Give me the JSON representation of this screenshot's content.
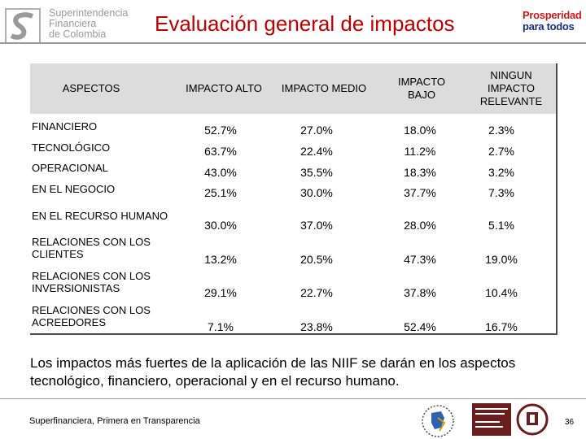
{
  "header": {
    "org_lines": [
      "Superintendencia",
      "Financiera",
      "de Colombia"
    ],
    "title": "Evaluación general de impactos",
    "prosperidad_lines": [
      "Prosperidad",
      "para todos"
    ]
  },
  "table": {
    "headers": [
      "ASPECTOS",
      "IMPACTO ALTO",
      "IMPACTO MEDIO",
      "IMPACTO BAJO",
      "NINGUN IMPACTO RELEVANTE"
    ],
    "rows": [
      {
        "aspect": "FINANCIERO",
        "values": [
          "52.7%",
          "27.0%",
          "18.0%",
          "2.3%"
        ]
      },
      {
        "aspect": "TECNOLÓGICO",
        "values": [
          "63.7%",
          "22.4%",
          "11.2%",
          "2.7%"
        ]
      },
      {
        "aspect": "OPERACIONAL",
        "values": [
          "43.0%",
          "35.5%",
          "18.3%",
          "3.2%"
        ]
      },
      {
        "aspect": "EN EL NEGOCIO",
        "values": [
          "25.1%",
          "30.0%",
          "37.7%",
          "7.3%"
        ]
      },
      {
        "aspect": "EN EL RECURSO HUMANO",
        "values": [
          "30.0%",
          "37.0%",
          "28.0%",
          "5.1%"
        ]
      },
      {
        "aspect": "RELACIONES CON LOS CLIENTES",
        "aspect_lines": [
          "RELACIONES CON LOS",
          "CLIENTES"
        ],
        "values": [
          "13.2%",
          "20.5%",
          "47.3%",
          "19.0%"
        ]
      },
      {
        "aspect": "RELACIONES CON LOS INVERSIONISTAS",
        "aspect_lines": [
          "RELACIONES CON LOS",
          "INVERSIONISTAS"
        ],
        "values": [
          "29.1%",
          "22.7%",
          "37.8%",
          "10.4%"
        ]
      },
      {
        "aspect": "RELACIONES CON LOS ACREEDORES",
        "aspect_lines": [
          "RELACIONES CON LOS",
          "ACREEDORES"
        ],
        "values": [
          "7.1%",
          "23.8%",
          "52.4%",
          "16.7%"
        ]
      }
    ]
  },
  "conclusion": "Los impactos más fuertes de la aplicación de las NIIF se darán en los aspectos tecnológico, financiero, operacional y en el recurso humano.",
  "footer": {
    "slogan": "Superfinanciera, Primera en Transparencia",
    "page_number": "36"
  },
  "colors": {
    "title": "#c00000",
    "header_bg": "#dcdcdc",
    "sfc_gray": "#9a9a9a",
    "prosperidad_red": "#d01a1a",
    "prosperidad_blue": "#1a2f7a"
  }
}
